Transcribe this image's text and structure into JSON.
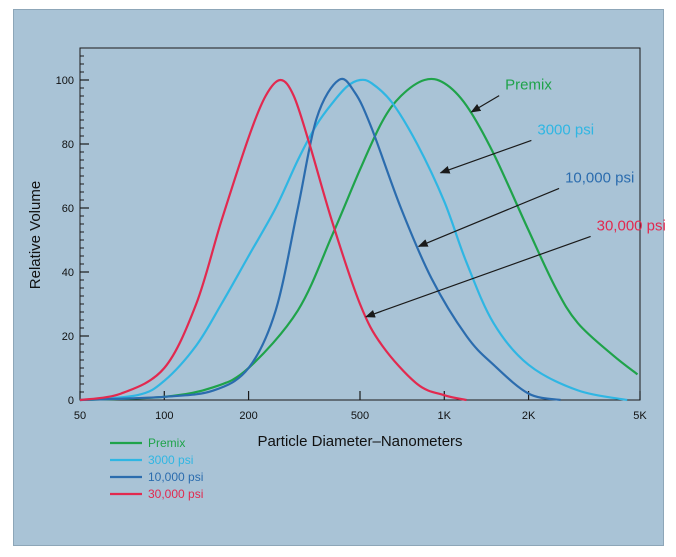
{
  "chart_data": {
    "type": "line",
    "title": "",
    "xlabel": "Particle Diameter–Nanometers",
    "ylabel": "Relative Volume",
    "xscale": "log",
    "xlim": [
      50,
      5000
    ],
    "ylim": [
      0,
      110
    ],
    "x_ticks": [
      {
        "value": 50,
        "label": "50"
      },
      {
        "value": 100,
        "label": "100"
      },
      {
        "value": 200,
        "label": "200"
      },
      {
        "value": 500,
        "label": "500"
      },
      {
        "value": 1000,
        "label": "1K"
      },
      {
        "value": 2000,
        "label": "2K"
      },
      {
        "value": 5000,
        "label": "5K"
      }
    ],
    "y_ticks": [
      {
        "value": 0,
        "label": "0"
      },
      {
        "value": 20,
        "label": "20"
      },
      {
        "value": 40,
        "label": "40"
      },
      {
        "value": 60,
        "label": "60"
      },
      {
        "value": 80,
        "label": "80"
      },
      {
        "value": 100,
        "label": "100"
      }
    ],
    "grid": false,
    "legend_position": "bottom-left",
    "series": [
      {
        "name": "Premix",
        "color": "#1fa34a",
        "points": [
          [
            50,
            0
          ],
          [
            100,
            1
          ],
          [
            150,
            4
          ],
          [
            200,
            10
          ],
          [
            300,
            28
          ],
          [
            400,
            52
          ],
          [
            500,
            72
          ],
          [
            600,
            87
          ],
          [
            700,
            95
          ],
          [
            850,
            100
          ],
          [
            1000,
            99
          ],
          [
            1200,
            92
          ],
          [
            1500,
            77
          ],
          [
            2000,
            53
          ],
          [
            2500,
            35
          ],
          [
            3000,
            24
          ],
          [
            4000,
            14
          ],
          [
            4900,
            8
          ]
        ]
      },
      {
        "name": "3000 psi",
        "color": "#2fb6e3",
        "points": [
          [
            50,
            0
          ],
          [
            80,
            1.5
          ],
          [
            100,
            6
          ],
          [
            130,
            17
          ],
          [
            160,
            30
          ],
          [
            200,
            45
          ],
          [
            250,
            60
          ],
          [
            300,
            75
          ],
          [
            350,
            86
          ],
          [
            400,
            93
          ],
          [
            450,
            98
          ],
          [
            500,
            100
          ],
          [
            550,
            99
          ],
          [
            650,
            93
          ],
          [
            800,
            80
          ],
          [
            1000,
            62
          ],
          [
            1200,
            43
          ],
          [
            1500,
            24
          ],
          [
            2000,
            11
          ],
          [
            3000,
            3
          ],
          [
            4500,
            0
          ]
        ]
      },
      {
        "name": "10,000 psi",
        "color": "#2b6cae",
        "points": [
          [
            50,
            0
          ],
          [
            100,
            1
          ],
          [
            150,
            3
          ],
          [
            200,
            10
          ],
          [
            250,
            28
          ],
          [
            300,
            60
          ],
          [
            350,
            88
          ],
          [
            420,
            100
          ],
          [
            480,
            96
          ],
          [
            550,
            85
          ],
          [
            700,
            60
          ],
          [
            900,
            38
          ],
          [
            1200,
            20
          ],
          [
            1500,
            11
          ],
          [
            2000,
            2
          ],
          [
            2600,
            0
          ]
        ]
      },
      {
        "name": "30,000 psi",
        "color": "#e2294f",
        "points": [
          [
            50,
            0
          ],
          [
            70,
            2
          ],
          [
            100,
            10
          ],
          [
            130,
            30
          ],
          [
            160,
            56
          ],
          [
            200,
            82
          ],
          [
            230,
            95
          ],
          [
            260,
            100
          ],
          [
            290,
            95
          ],
          [
            330,
            80
          ],
          [
            400,
            55
          ],
          [
            500,
            30
          ],
          [
            600,
            17
          ],
          [
            800,
            5
          ],
          [
            1000,
            1.5
          ],
          [
            1200,
            0
          ]
        ]
      }
    ],
    "annotations": [
      {
        "text": "Premix",
        "color": "#1fa34a",
        "text_at": [
          1650,
          97
        ],
        "arrow_to": [
          1250,
          90
        ]
      },
      {
        "text": "3000 psi",
        "color": "#2fb6e3",
        "text_at": [
          2150,
          83
        ],
        "arrow_to": [
          970,
          71
        ]
      },
      {
        "text": "10,000 psi",
        "color": "#2b6cae",
        "text_at": [
          2700,
          68
        ],
        "arrow_to": [
          810,
          48
        ]
      },
      {
        "text": "30,000 psi",
        "color": "#e2294f",
        "text_at": [
          3500,
          53
        ],
        "arrow_to": [
          525,
          26
        ]
      }
    ]
  }
}
